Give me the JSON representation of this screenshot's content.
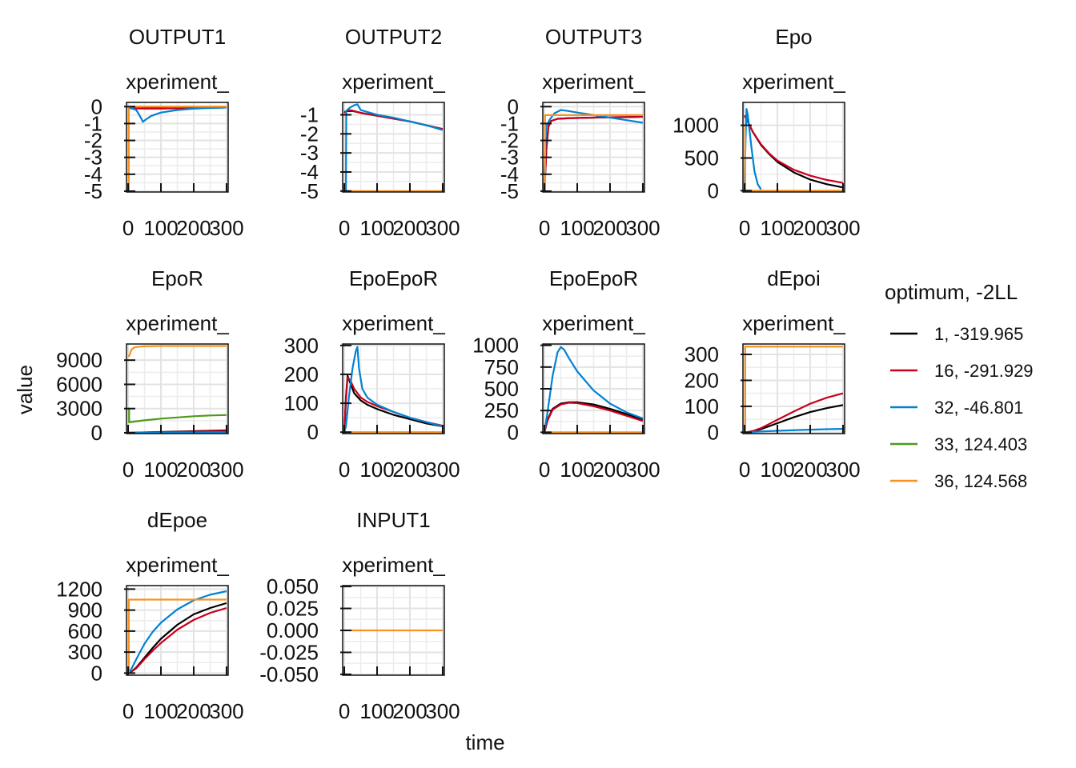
{
  "figure": {
    "ylabel": "value",
    "xlabel": "time",
    "strip_label": "xperiment_"
  },
  "legend": {
    "title": "optimum, -2LL",
    "position": "right",
    "entries": [
      {
        "label": "1, -319.965",
        "color": "#000000"
      },
      {
        "label": "16, -291.929",
        "color": "#c8001e"
      },
      {
        "label": "32, -46.801",
        "color": "#0082d2"
      },
      {
        "label": "33, 124.403",
        "color": "#4e9a1b"
      },
      {
        "label": "36, 124.568",
        "color": "#f7931e"
      }
    ]
  },
  "chart_data": [
    {
      "type": "line",
      "title": "OUTPUT1",
      "strip": "xperiment_",
      "xlim": [
        -5,
        305
      ],
      "ylim": [
        -5.05,
        0.25
      ],
      "xticks": [
        0,
        100,
        200,
        300
      ],
      "yticks": [
        0,
        -1,
        -2,
        -3,
        -4,
        -5
      ],
      "series": [
        {
          "name": "1, -319.965",
          "x": [
            0,
            5,
            50,
            100,
            150,
            200,
            250,
            300
          ],
          "y": [
            0,
            -0.1,
            -0.1,
            -0.1,
            -0.1,
            -0.08,
            -0.06,
            -0.05
          ]
        },
        {
          "name": "16, -291.929",
          "x": [
            0,
            5,
            50,
            100,
            150,
            200,
            250,
            300
          ],
          "y": [
            0,
            -0.1,
            -0.12,
            -0.12,
            -0.1,
            -0.08,
            -0.06,
            -0.05
          ]
        },
        {
          "name": "32, -46.801",
          "x": [
            0,
            10,
            25,
            40,
            45,
            55,
            70,
            100,
            150,
            200,
            250,
            300
          ],
          "y": [
            0,
            -0.1,
            -0.2,
            -0.7,
            -0.9,
            -0.75,
            -0.55,
            -0.35,
            -0.2,
            -0.12,
            -0.08,
            -0.05
          ]
        },
        {
          "name": "36, 124.568",
          "x": [
            0,
            2,
            2,
            10,
            100,
            200,
            300
          ],
          "y": [
            -5,
            -5,
            0,
            0,
            0,
            0,
            0
          ]
        }
      ]
    },
    {
      "type": "line",
      "title": "OUTPUT2",
      "strip": "xperiment_",
      "xlim": [
        -5,
        305
      ],
      "ylim": [
        -5.05,
        -0.35
      ],
      "xticks": [
        0,
        100,
        200,
        300
      ],
      "yticks": [
        -1,
        -2,
        -3,
        -4,
        -5
      ],
      "series": [
        {
          "name": "1, -319.965",
          "x": [
            0,
            10,
            25,
            50,
            100,
            150,
            200,
            250,
            300
          ],
          "y": [
            -0.85,
            -0.8,
            -0.8,
            -0.9,
            -1.05,
            -1.2,
            -1.35,
            -1.55,
            -1.75
          ]
        },
        {
          "name": "16, -291.929",
          "x": [
            0,
            10,
            25,
            50,
            100,
            150,
            200,
            250,
            300
          ],
          "y": [
            -0.9,
            -0.75,
            -0.78,
            -0.9,
            -1.05,
            -1.2,
            -1.35,
            -1.55,
            -1.75
          ]
        },
        {
          "name": "32, -46.801",
          "x": [
            0,
            5,
            6,
            15,
            30,
            40,
            45,
            50,
            70,
            100,
            150,
            200,
            250,
            300
          ],
          "y": [
            -5,
            -5,
            -0.8,
            -0.65,
            -0.5,
            -0.45,
            -0.6,
            -0.75,
            -0.85,
            -1.0,
            -1.15,
            -1.35,
            -1.55,
            -1.8
          ]
        },
        {
          "name": "36, 124.568",
          "x": [
            0,
            300
          ],
          "y": [
            -5,
            -5
          ]
        }
      ]
    },
    {
      "type": "line",
      "title": "OUTPUT3",
      "strip": "xperiment_",
      "xlim": [
        -5,
        305
      ],
      "ylim": [
        -5.05,
        0.25
      ],
      "xticks": [
        0,
        100,
        200,
        300
      ],
      "yticks": [
        0,
        -1,
        -2,
        -3,
        -4,
        -5
      ],
      "series": [
        {
          "name": "1, -319.965",
          "x": [
            0,
            6,
            12,
            20,
            40,
            80,
            150,
            200,
            250,
            300
          ],
          "y": [
            -5,
            -2.5,
            -1.2,
            -0.85,
            -0.72,
            -0.68,
            -0.65,
            -0.63,
            -0.62,
            -0.6
          ]
        },
        {
          "name": "16, -291.929",
          "x": [
            0,
            6,
            12,
            20,
            40,
            80,
            150,
            200,
            250,
            300
          ],
          "y": [
            -5,
            -2.5,
            -1.2,
            -0.85,
            -0.72,
            -0.68,
            -0.65,
            -0.63,
            -0.62,
            -0.6
          ]
        },
        {
          "name": "32, -46.801",
          "x": [
            0,
            5,
            15,
            30,
            50,
            70,
            100,
            150,
            200,
            250,
            300
          ],
          "y": [
            -4,
            -1.2,
            -0.8,
            -0.4,
            -0.2,
            -0.25,
            -0.35,
            -0.5,
            -0.65,
            -0.8,
            -0.95
          ]
        },
        {
          "name": "36, 124.568",
          "x": [
            0,
            2,
            2,
            10,
            100,
            200,
            300
          ],
          "y": [
            -5,
            -5,
            -0.5,
            -0.5,
            -0.5,
            -0.5,
            -0.5
          ]
        }
      ]
    },
    {
      "type": "line",
      "title": "Epo",
      "strip": "xperiment_",
      "xlim": [
        -5,
        305
      ],
      "ylim": [
        -20,
        1350
      ],
      "xticks": [
        0,
        100,
        200,
        300
      ],
      "yticks": [
        0,
        500,
        1000
      ],
      "series": [
        {
          "name": "1, -319.965",
          "x": [
            0,
            10,
            25,
            50,
            75,
            100,
            150,
            200,
            250,
            300
          ],
          "y": [
            1150,
            1050,
            900,
            700,
            560,
            440,
            280,
            170,
            100,
            50
          ]
        },
        {
          "name": "16, -291.929",
          "x": [
            0,
            10,
            25,
            50,
            75,
            100,
            150,
            200,
            250,
            300
          ],
          "y": [
            1150,
            1050,
            900,
            710,
            570,
            460,
            320,
            230,
            165,
            120
          ]
        },
        {
          "name": "32, -46.801",
          "x": [
            0,
            3,
            6,
            10,
            20,
            30,
            40,
            50
          ],
          "y": [
            0,
            800,
            1250,
            1150,
            700,
            300,
            100,
            20
          ]
        },
        {
          "name": "36, 124.568",
          "x": [
            0,
            2,
            2,
            10,
            100,
            200,
            300
          ],
          "y": [
            1000,
            1000,
            0,
            0,
            0,
            0,
            0
          ]
        }
      ]
    },
    {
      "type": "line",
      "title": "EpoR",
      "strip": "xperiment_",
      "xlim": [
        -5,
        305
      ],
      "ylim": [
        -100,
        11000
      ],
      "xticks": [
        0,
        100,
        200,
        300
      ],
      "yticks": [
        0,
        3000,
        6000,
        9000
      ],
      "series": [
        {
          "name": "1, -319.965",
          "x": [
            0,
            50,
            100,
            150,
            200,
            250,
            300
          ],
          "y": [
            0,
            50,
            100,
            150,
            200,
            250,
            300
          ]
        },
        {
          "name": "16, -291.929",
          "x": [
            0,
            50,
            100,
            150,
            200,
            250,
            300
          ],
          "y": [
            0,
            40,
            80,
            110,
            150,
            190,
            230
          ]
        },
        {
          "name": "32, -46.801",
          "x": [
            0,
            50,
            100,
            150,
            200,
            250,
            300
          ],
          "y": [
            0,
            20,
            30,
            40,
            50,
            60,
            70
          ]
        },
        {
          "name": "33, 124.403",
          "x": [
            0,
            3,
            3,
            20,
            50,
            100,
            150,
            200,
            250,
            300
          ],
          "y": [
            3000,
            3000,
            1300,
            1400,
            1550,
            1750,
            1900,
            2050,
            2150,
            2200
          ]
        },
        {
          "name": "36, 124.568",
          "x": [
            0,
            3,
            3,
            10,
            20,
            40,
            100,
            200,
            300
          ],
          "y": [
            9500,
            9500,
            9500,
            10300,
            10600,
            10700,
            10750,
            10750,
            10750
          ]
        }
      ]
    },
    {
      "type": "line",
      "title": "EpoEpoR",
      "strip": "xperiment_",
      "xlim": [
        -5,
        305
      ],
      "ylim": [
        -5,
        305
      ],
      "xticks": [
        0,
        100,
        200,
        300
      ],
      "yticks": [
        0,
        100,
        200,
        300
      ],
      "series": [
        {
          "name": "1, -319.965",
          "x": [
            0,
            5,
            10,
            20,
            30,
            50,
            70,
            100,
            150,
            200,
            250,
            300
          ],
          "y": [
            0,
            120,
            195,
            165,
            135,
            110,
            95,
            80,
            60,
            45,
            30,
            20
          ]
        },
        {
          "name": "16, -291.929",
          "x": [
            0,
            5,
            10,
            20,
            30,
            50,
            70,
            100,
            150,
            200,
            250,
            300
          ],
          "y": [
            0,
            110,
            190,
            175,
            150,
            120,
            105,
            90,
            70,
            50,
            35,
            22
          ]
        },
        {
          "name": "32, -46.801",
          "x": [
            0,
            5,
            15,
            25,
            35,
            40,
            45,
            55,
            70,
            100,
            150,
            200,
            250,
            300
          ],
          "y": [
            0,
            20,
            130,
            220,
            280,
            295,
            220,
            150,
            120,
            95,
            70,
            50,
            35,
            20
          ]
        },
        {
          "name": "36, 124.568",
          "x": [
            0,
            300
          ],
          "y": [
            0,
            0
          ]
        }
      ]
    },
    {
      "type": "line",
      "title": "EpoEpoR",
      "strip": "xperiment_",
      "xlim": [
        -5,
        305
      ],
      "ylim": [
        -15,
        1015
      ],
      "xticks": [
        0,
        100,
        200,
        300
      ],
      "yticks": [
        0,
        250,
        500,
        750,
        1000
      ],
      "series": [
        {
          "name": "1, -319.965",
          "x": [
            0,
            10,
            25,
            50,
            75,
            100,
            150,
            200,
            250,
            300
          ],
          "y": [
            0,
            150,
            270,
            330,
            345,
            345,
            320,
            270,
            210,
            150
          ]
        },
        {
          "name": "16, -291.929",
          "x": [
            0,
            10,
            25,
            50,
            75,
            100,
            150,
            200,
            250,
            300
          ],
          "y": [
            0,
            140,
            260,
            320,
            340,
            335,
            300,
            250,
            190,
            130
          ]
        },
        {
          "name": "32, -46.801",
          "x": [
            0,
            10,
            25,
            40,
            50,
            60,
            75,
            100,
            150,
            200,
            250,
            300
          ],
          "y": [
            0,
            250,
            650,
            920,
            980,
            950,
            850,
            700,
            480,
            330,
            230,
            160
          ]
        },
        {
          "name": "36, 124.568",
          "x": [
            0,
            300
          ],
          "y": [
            0,
            0
          ]
        }
      ]
    },
    {
      "type": "line",
      "title": "dEpoi",
      "strip": "xperiment_",
      "xlim": [
        -5,
        305
      ],
      "ylim": [
        -5,
        340
      ],
      "xticks": [
        0,
        100,
        200,
        300
      ],
      "yticks": [
        0,
        100,
        200,
        300
      ],
      "series": [
        {
          "name": "1, -319.965",
          "x": [
            0,
            10,
            25,
            50,
            100,
            150,
            200,
            250,
            300
          ],
          "y": [
            0,
            1,
            4,
            12,
            35,
            58,
            78,
            93,
            105
          ]
        },
        {
          "name": "16, -291.929",
          "x": [
            0,
            10,
            25,
            50,
            100,
            150,
            200,
            250,
            300
          ],
          "y": [
            0,
            1,
            5,
            16,
            48,
            80,
            110,
            133,
            150
          ]
        },
        {
          "name": "32, -46.801",
          "x": [
            0,
            50,
            100,
            150,
            200,
            250,
            300
          ],
          "y": [
            0,
            3,
            6,
            8,
            10,
            12,
            13
          ]
        },
        {
          "name": "36, 124.568",
          "x": [
            0,
            2,
            2,
            10,
            100,
            200,
            300
          ],
          "y": [
            0,
            0,
            330,
            330,
            330,
            330,
            330
          ]
        }
      ]
    },
    {
      "type": "line",
      "title": "dEpoe",
      "strip": "xperiment_",
      "xlim": [
        -5,
        305
      ],
      "ylim": [
        -30,
        1250
      ],
      "xticks": [
        0,
        100,
        200,
        300
      ],
      "yticks": [
        0,
        300,
        600,
        900,
        1200
      ],
      "series": [
        {
          "name": "1, -319.965",
          "x": [
            0,
            10,
            25,
            50,
            75,
            100,
            150,
            200,
            250,
            300
          ],
          "y": [
            0,
            20,
            80,
            220,
            360,
            490,
            690,
            840,
            930,
            1000
          ]
        },
        {
          "name": "16, -291.929",
          "x": [
            0,
            10,
            25,
            50,
            75,
            100,
            150,
            200,
            250,
            300
          ],
          "y": [
            0,
            20,
            70,
            200,
            320,
            430,
            620,
            760,
            860,
            930
          ]
        },
        {
          "name": "32, -46.801",
          "x": [
            0,
            10,
            25,
            50,
            75,
            100,
            150,
            200,
            250,
            300
          ],
          "y": [
            0,
            60,
            200,
            420,
            590,
            720,
            910,
            1040,
            1120,
            1170
          ]
        },
        {
          "name": "36, 124.568",
          "x": [
            0,
            2,
            2,
            10,
            100,
            200,
            300
          ],
          "y": [
            0,
            0,
            1050,
            1050,
            1050,
            1050,
            1050
          ]
        }
      ]
    },
    {
      "type": "line",
      "title": "INPUT1",
      "strip": "xperiment_",
      "xlim": [
        -5,
        305
      ],
      "ylim": [
        -0.051,
        0.051
      ],
      "xticks": [
        0,
        100,
        200,
        300
      ],
      "yticks": [
        0.05,
        0.025,
        0.0,
        -0.025,
        -0.05
      ],
      "ytick_labels": [
        "0.050",
        "0.025",
        "0.000",
        "-0.025",
        "-0.050"
      ],
      "series": [
        {
          "name": "36, 124.568",
          "x": [
            0,
            300
          ],
          "y": [
            0,
            0
          ]
        }
      ]
    }
  ]
}
